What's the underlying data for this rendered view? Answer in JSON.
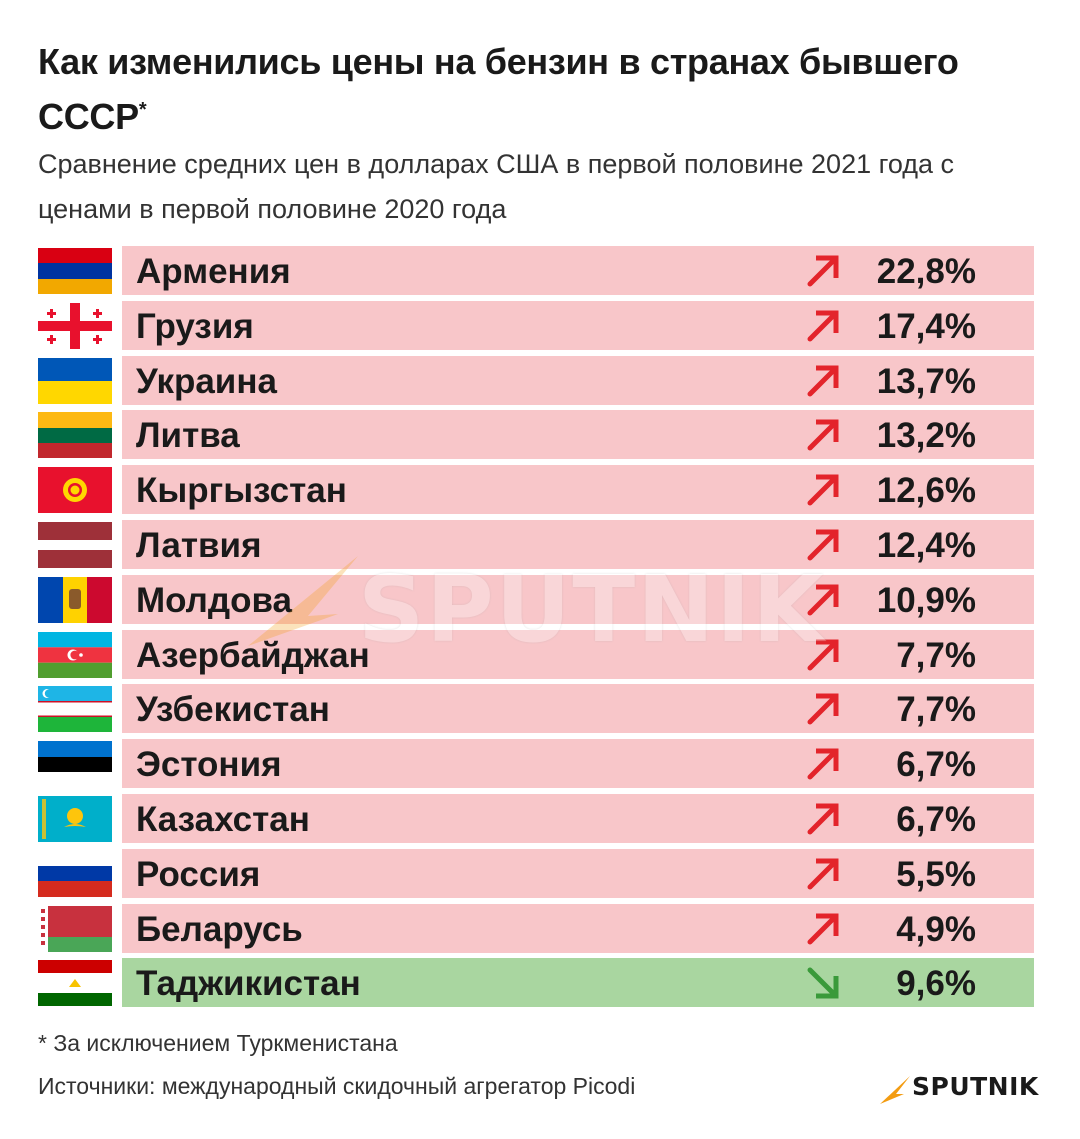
{
  "header": {
    "title": "Как изменились цены на бензин в странах бывшего СССР",
    "title_mark": "*",
    "subtitle": "Сравнение средних цен в долларах США в первой половине 2021 года с ценами в первой половине 2020 года"
  },
  "chart_data": {
    "type": "table",
    "rows": [
      {
        "country": "Армения",
        "value": "22,8%",
        "direction": "up",
        "flag_icon": "armenia-flag-icon"
      },
      {
        "country": "Грузия",
        "value": "17,4%",
        "direction": "up",
        "flag_icon": "georgia-flag-icon"
      },
      {
        "country": "Украина",
        "value": "13,7%",
        "direction": "up",
        "flag_icon": "ukraine-flag-icon"
      },
      {
        "country": "Литва",
        "value": "13,2%",
        "direction": "up",
        "flag_icon": "lithuania-flag-icon"
      },
      {
        "country": "Кыргызстан",
        "value": "12,6%",
        "direction": "up",
        "flag_icon": "kyrgyzstan-flag-icon"
      },
      {
        "country": "Латвия",
        "value": "12,4%",
        "direction": "up",
        "flag_icon": "latvia-flag-icon"
      },
      {
        "country": "Молдова",
        "value": "10,9%",
        "direction": "up",
        "flag_icon": "moldova-flag-icon"
      },
      {
        "country": "Азербайджан",
        "value": "7,7%",
        "direction": "up",
        "flag_icon": "azerbaijan-flag-icon"
      },
      {
        "country": "Узбекистан",
        "value": "7,7%",
        "direction": "up",
        "flag_icon": "uzbekistan-flag-icon"
      },
      {
        "country": "Эстония",
        "value": "6,7%",
        "direction": "up",
        "flag_icon": "estonia-flag-icon"
      },
      {
        "country": "Казахстан",
        "value": "6,7%",
        "direction": "up",
        "flag_icon": "kazakhstan-flag-icon"
      },
      {
        "country": "Россия",
        "value": "5,5%",
        "direction": "up",
        "flag_icon": "russia-flag-icon"
      },
      {
        "country": "Беларусь",
        "value": "4,9%",
        "direction": "up",
        "flag_icon": "belarus-flag-icon"
      },
      {
        "country": "Таджикистан",
        "value": "9,6%",
        "direction": "down",
        "flag_icon": "tajikistan-flag-icon"
      }
    ]
  },
  "colors": {
    "up_row": "#f8c6c9",
    "down_row": "#a9d6a0",
    "up_arrow": "#e3242b",
    "down_arrow": "#3a9a3a",
    "accent": "#f39c12"
  },
  "footer": {
    "footnote": "* За исключением Туркменистана",
    "source": "Источники: международный скидочный агрегатор Picodi"
  },
  "branding": {
    "watermark": "SPUTNIK",
    "logo": "SPUTNIK"
  }
}
